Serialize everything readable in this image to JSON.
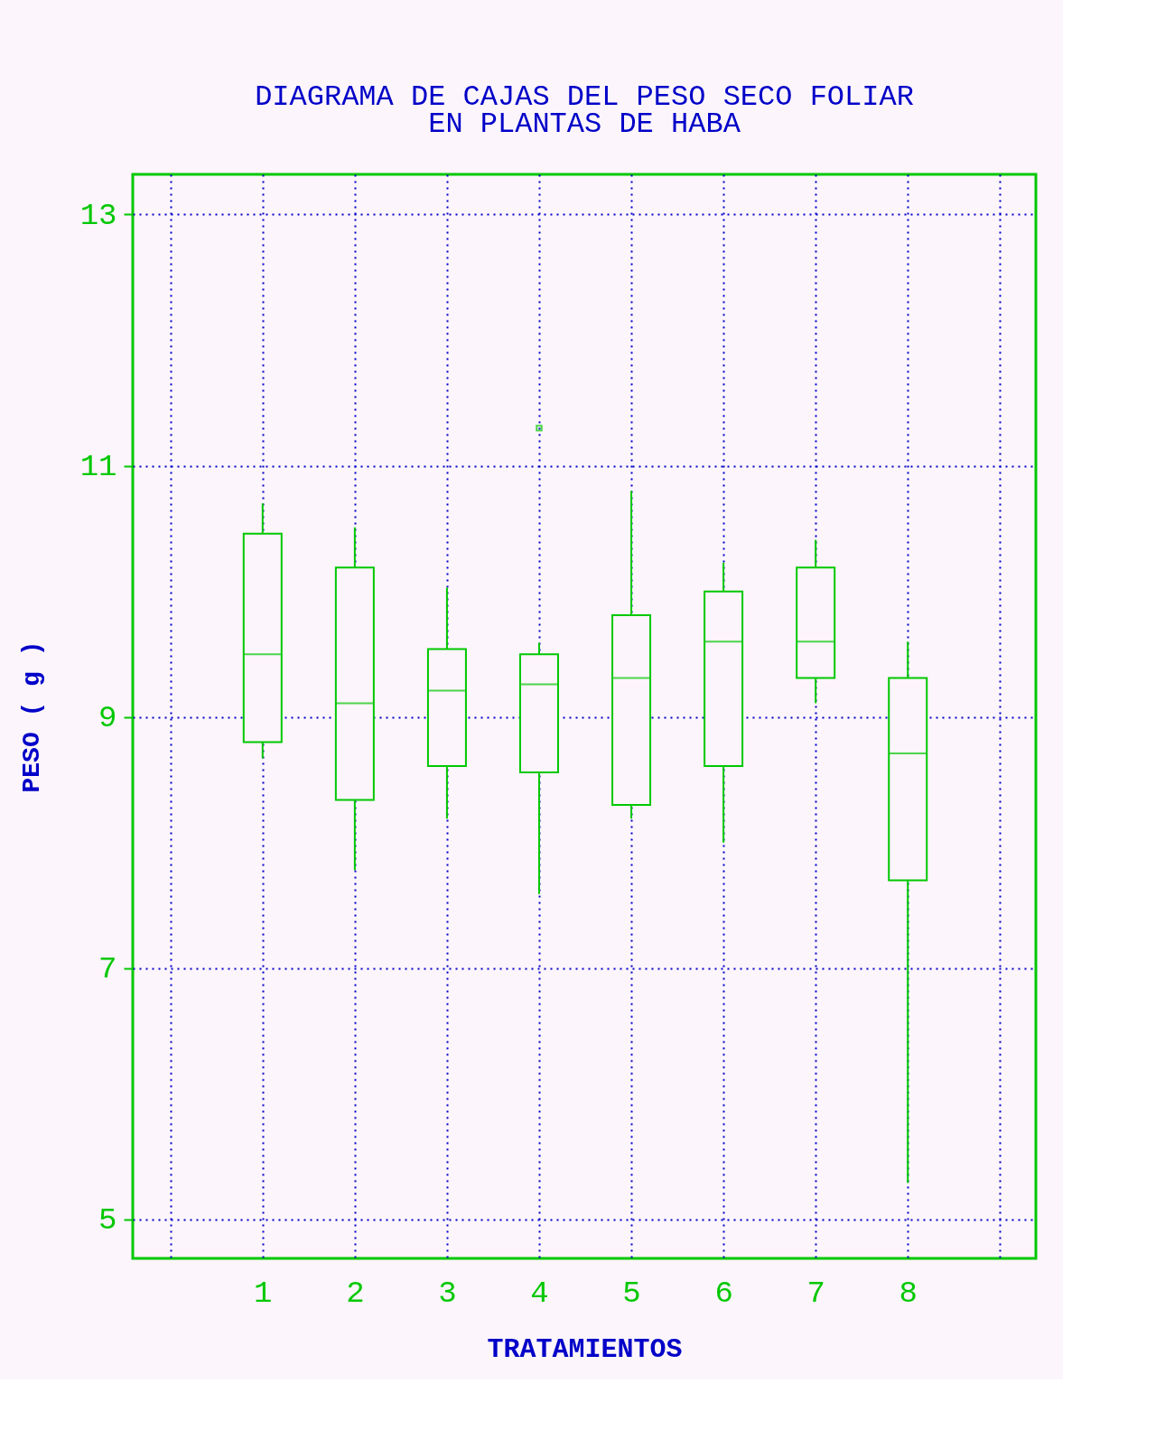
{
  "chart_data": {
    "type": "box",
    "title": "DIAGRAMA DE CAJAS DEL PESO SECO FOLIAR\nEN PLANTAS DE HABA",
    "xlabel": "TRATAMIENTOS",
    "ylabel": "PESO ( g )",
    "categories": [
      "1",
      "2",
      "3",
      "4",
      "5",
      "6",
      "7",
      "8"
    ],
    "color": "#00c800",
    "boxes": [
      {
        "low": 8.67,
        "q1": 8.8,
        "median": 9.5,
        "q3": 10.46,
        "high": 10.7
      },
      {
        "low": 7.78,
        "q1": 8.34,
        "median": 9.11,
        "q3": 10.19,
        "high": 10.51
      },
      {
        "low": 8.19,
        "q1": 8.61,
        "median": 9.21,
        "q3": 9.54,
        "high": 10.03
      },
      {
        "low": 7.59,
        "q1": 8.56,
        "median": 9.26,
        "q3": 9.5,
        "high": 9.59,
        "outliers": [
          11.3
        ]
      },
      {
        "low": 8.19,
        "q1": 8.3,
        "median": 9.31,
        "q3": 9.81,
        "high": 10.8
      },
      {
        "low": 8.0,
        "q1": 8.61,
        "median": 9.6,
        "q3": 10.0,
        "high": 10.23
      },
      {
        "low": 9.11,
        "q1": 9.31,
        "median": 9.6,
        "q3": 10.19,
        "high": 10.41
      },
      {
        "low": 5.29,
        "q1": 7.7,
        "median": 8.71,
        "q3": 9.31,
        "high": 9.6
      }
    ],
    "ylim": [
      4.69,
      13.32
    ],
    "yticks": [
      5,
      7,
      9,
      11,
      13
    ],
    "grid": true
  }
}
